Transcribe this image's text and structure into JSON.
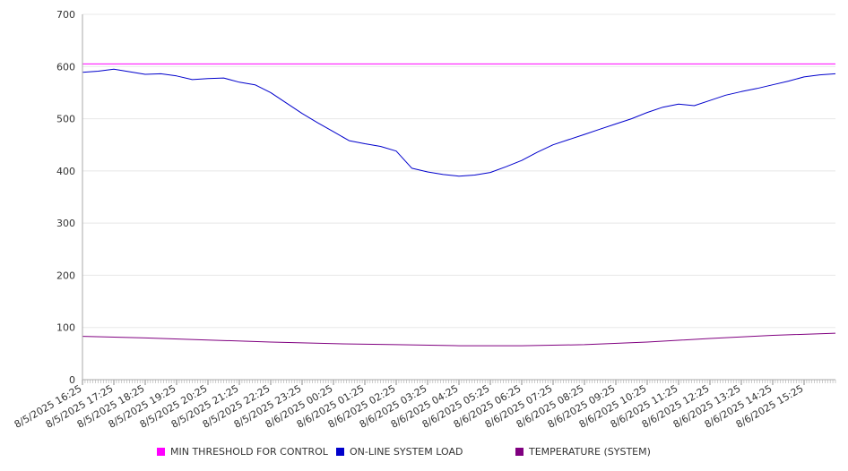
{
  "chart_data": {
    "type": "line",
    "ylim": [
      0,
      700
    ],
    "yticks": [
      0,
      100,
      200,
      300,
      400,
      500,
      600,
      700
    ],
    "x_tick_labels": [
      "8/5/2025 16:25",
      "8/5/2025 17:25",
      "8/5/2025 18:25",
      "8/5/2025 19:25",
      "8/5/2025 20:25",
      "8/5/2025 21:25",
      "8/5/2025 22:25",
      "8/5/2025 23:25",
      "8/6/2025 00:25",
      "8/6/2025 01:25",
      "8/6/2025 02:25",
      "8/6/2025 03:25",
      "8/6/2025 04:25",
      "8/6/2025 05:25",
      "8/6/2025 06:25",
      "8/6/2025 07:25",
      "8/6/2025 08:25",
      "8/6/2025 09:25",
      "8/6/2025 10:25",
      "8/6/2025 11:25",
      "8/6/2025 12:25",
      "8/6/2025 13:25",
      "8/6/2025 14:25",
      "8/6/2025 15:25"
    ],
    "x_range": [
      "8/5/2025 16:25",
      "8/6/2025 16:25"
    ],
    "grid": true,
    "legend_position": "bottom",
    "series": [
      {
        "name": "MIN THRESHOLD FOR CONTROL",
        "color": "#ff00ff",
        "x": [
          "8/5/2025 16:25",
          "8/6/2025 16:25"
        ],
        "values": [
          605,
          605
        ]
      },
      {
        "name": "ON-LINE SYSTEM LOAD",
        "color": "#0000cc",
        "x": [
          "8/5/2025 16:25",
          "8/5/2025 16:55",
          "8/5/2025 17:25",
          "8/5/2025 17:55",
          "8/5/2025 18:25",
          "8/5/2025 18:55",
          "8/5/2025 19:25",
          "8/5/2025 19:55",
          "8/5/2025 20:25",
          "8/5/2025 20:55",
          "8/5/2025 21:25",
          "8/5/2025 21:55",
          "8/5/2025 22:25",
          "8/5/2025 22:55",
          "8/5/2025 23:25",
          "8/5/2025 23:55",
          "8/6/2025 00:25",
          "8/6/2025 00:55",
          "8/6/2025 01:25",
          "8/6/2025 01:55",
          "8/6/2025 02:25",
          "8/6/2025 02:55",
          "8/6/2025 03:25",
          "8/6/2025 03:55",
          "8/6/2025 04:25",
          "8/6/2025 04:55",
          "8/6/2025 05:25",
          "8/6/2025 05:55",
          "8/6/2025 06:25",
          "8/6/2025 06:55",
          "8/6/2025 07:25",
          "8/6/2025 07:55",
          "8/6/2025 08:25",
          "8/6/2025 08:55",
          "8/6/2025 09:25",
          "8/6/2025 09:55",
          "8/6/2025 10:25",
          "8/6/2025 10:55",
          "8/6/2025 11:25",
          "8/6/2025 11:55",
          "8/6/2025 12:25",
          "8/6/2025 12:55",
          "8/6/2025 13:25",
          "8/6/2025 13:55",
          "8/6/2025 14:25",
          "8/6/2025 14:55",
          "8/6/2025 15:25",
          "8/6/2025 15:55",
          "8/6/2025 16:25"
        ],
        "values": [
          589,
          591,
          595,
          590,
          585,
          586,
          582,
          575,
          577,
          578,
          570,
          565,
          550,
          530,
          510,
          492,
          475,
          458,
          452,
          447,
          438,
          405,
          398,
          393,
          390,
          392,
          397,
          408,
          420,
          436,
          450,
          460,
          470,
          480,
          490,
          500,
          512,
          522,
          528,
          525,
          535,
          545,
          552,
          558,
          565,
          572,
          580,
          584,
          586
        ]
      },
      {
        "name": "TEMPERATURE (SYSTEM)",
        "color": "#800080",
        "x": [
          "8/5/2025 16:25",
          "8/5/2025 18:25",
          "8/5/2025 20:25",
          "8/5/2025 22:25",
          "8/6/2025 00:25",
          "8/6/2025 02:25",
          "8/6/2025 04:25",
          "8/6/2025 06:25",
          "8/6/2025 08:25",
          "8/6/2025 10:25",
          "8/6/2025 12:25",
          "8/6/2025 14:25",
          "8/6/2025 16:25"
        ],
        "values": [
          83,
          80,
          76,
          72,
          69,
          67,
          65,
          65,
          67,
          72,
          79,
          85,
          89
        ]
      }
    ]
  }
}
